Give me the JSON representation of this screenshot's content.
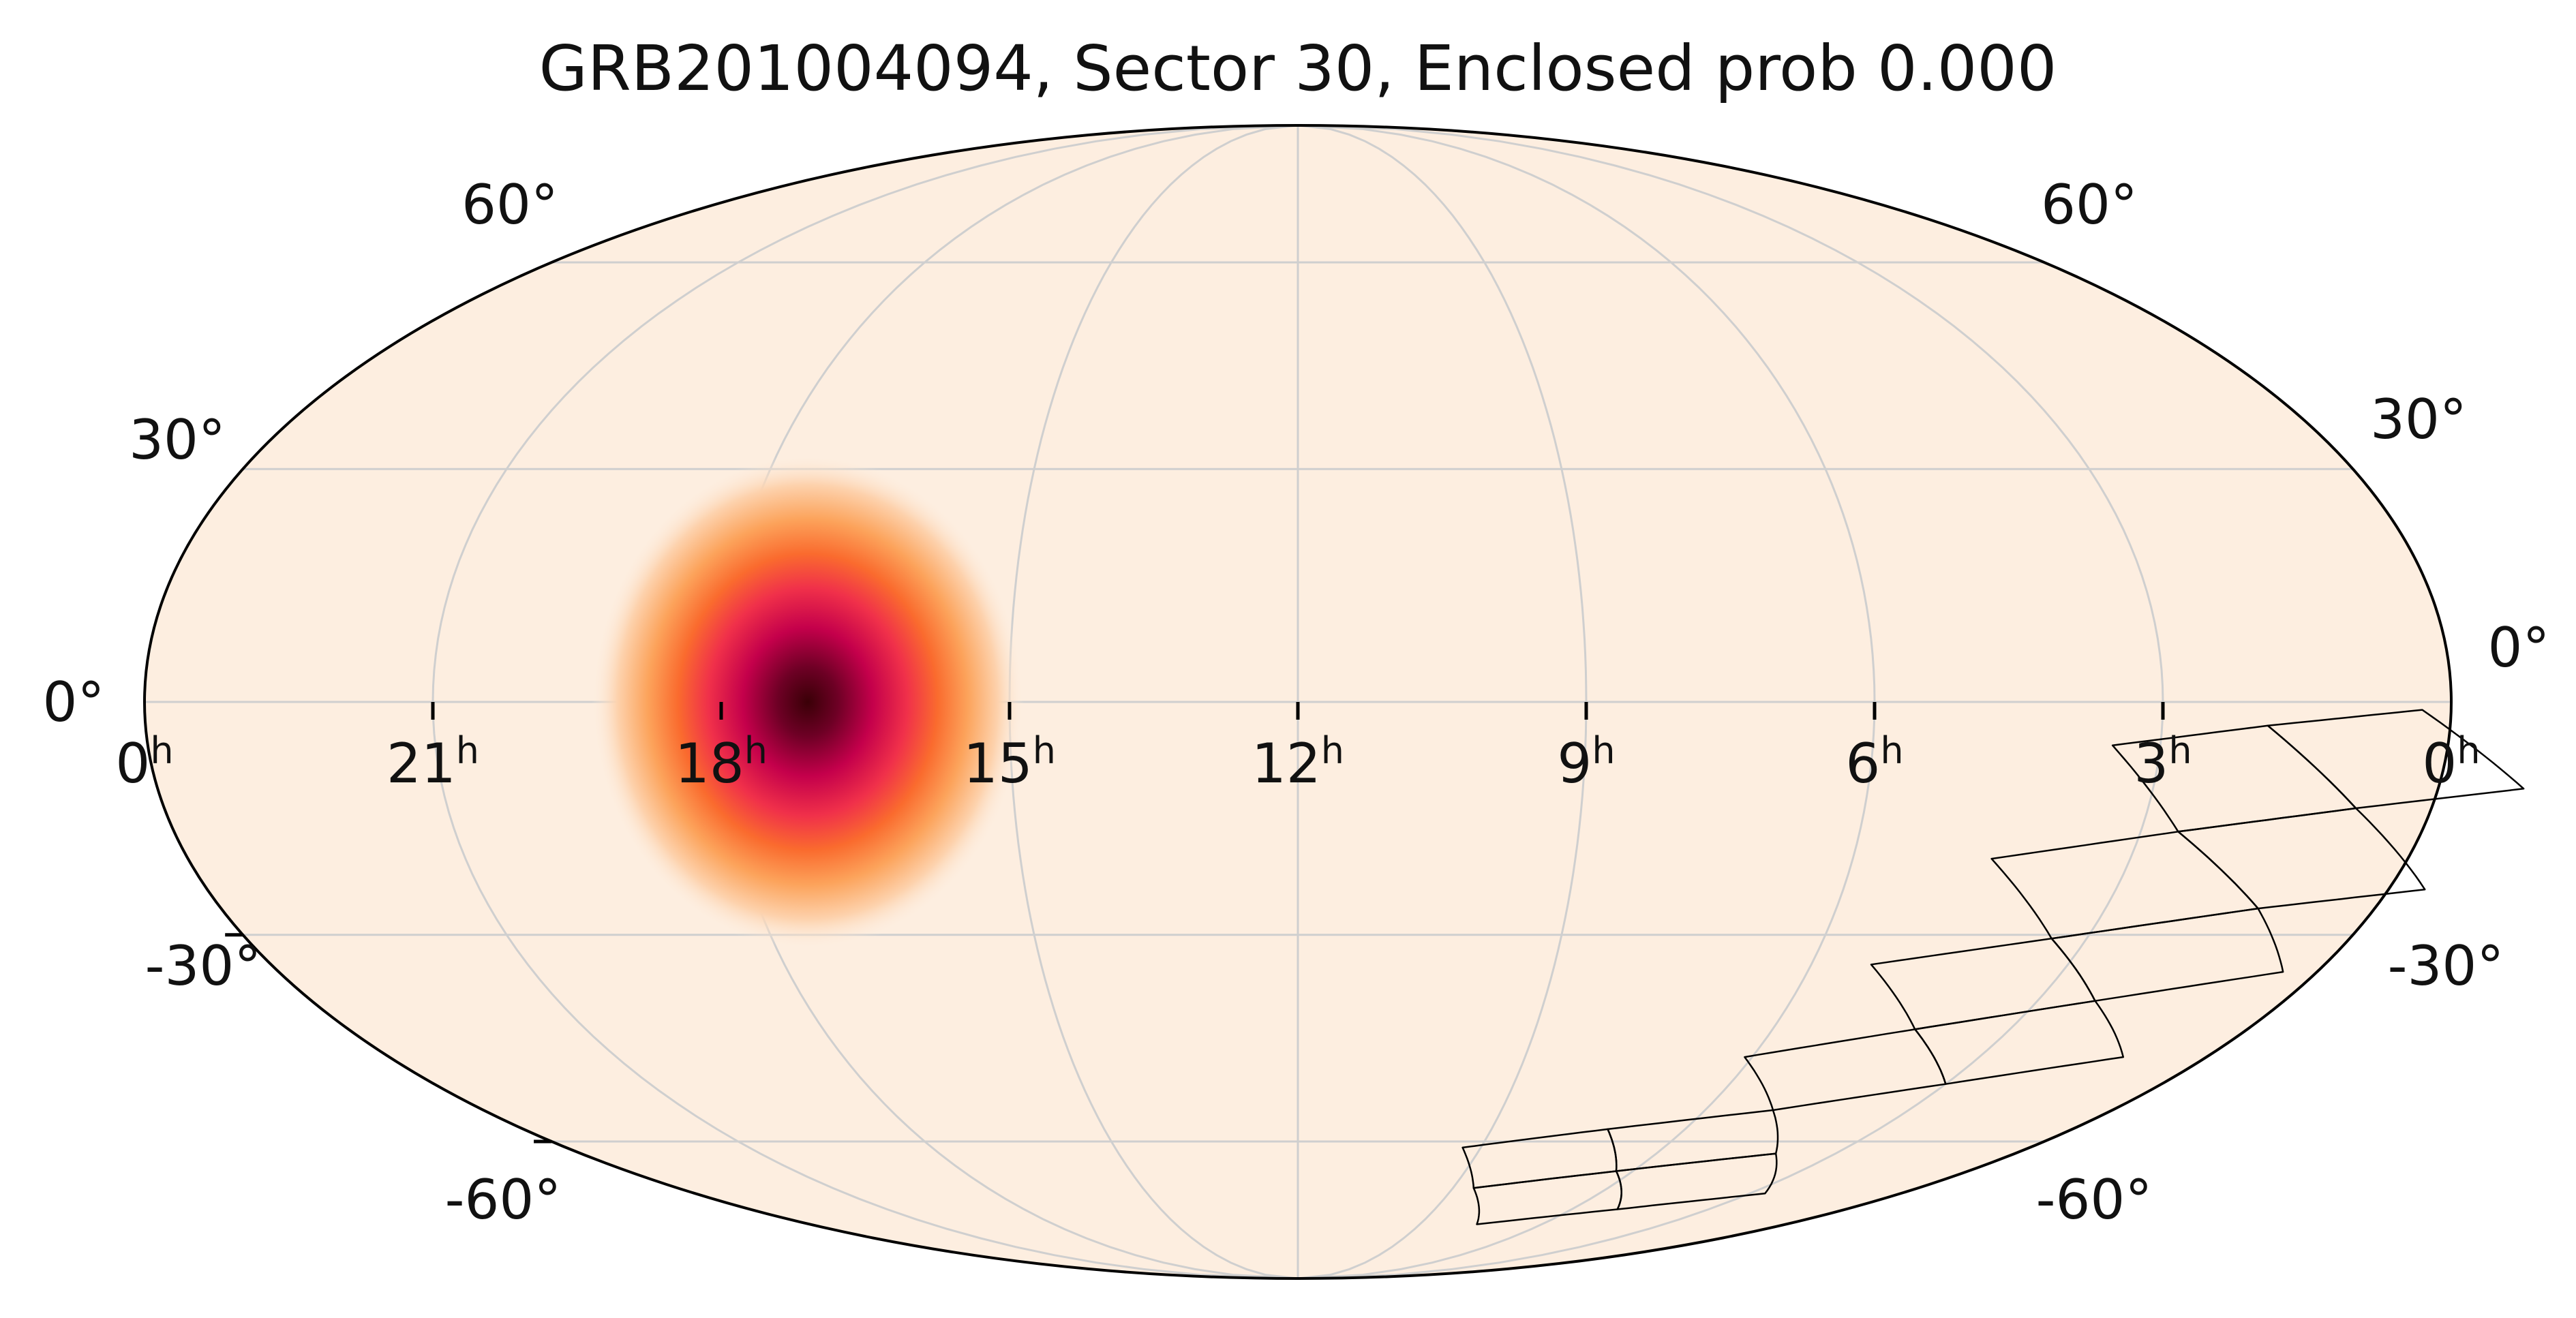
{
  "title": "GRB201004094, Sector 30, Enclosed prob 0.000",
  "projection": "mollweide",
  "colors": {
    "background": "#fdeee0",
    "grid": "#cfcfcf",
    "outline": "#000000",
    "footprint": "#000000",
    "colormap": [
      "#fdeee0",
      "#fdd0a8",
      "#fc9c56",
      "#f85a36",
      "#e0174a",
      "#a3004b",
      "#3a0007"
    ]
  },
  "ra_labels": [
    {
      "hours": 0,
      "text": "0",
      "unit": "h"
    },
    {
      "hours": 21,
      "text": "21",
      "unit": "h"
    },
    {
      "hours": 18,
      "text": "18",
      "unit": "h"
    },
    {
      "hours": 15,
      "text": "15",
      "unit": "h"
    },
    {
      "hours": 12,
      "text": "12",
      "unit": "h"
    },
    {
      "hours": 9,
      "text": "9",
      "unit": "h"
    },
    {
      "hours": 6,
      "text": "6",
      "unit": "h"
    },
    {
      "hours": 3,
      "text": "3",
      "unit": "h"
    },
    {
      "hours": 0,
      "text": "0",
      "unit": "h",
      "side": "right"
    }
  ],
  "dec_labels_left": [
    {
      "dec": 60,
      "text": "60°"
    },
    {
      "dec": 30,
      "text": "30°"
    },
    {
      "dec": 0,
      "text": "0°"
    },
    {
      "dec": -30,
      "text": "-30°"
    },
    {
      "dec": -60,
      "text": "-60°"
    }
  ],
  "dec_labels_right": [
    {
      "dec": 60,
      "text": "60°"
    },
    {
      "dec": 30,
      "text": "30°"
    },
    {
      "dec": 0,
      "text": "0°"
    },
    {
      "dec": -30,
      "text": "-30°"
    },
    {
      "dec": -60,
      "text": "-60°"
    }
  ],
  "probability_peak": {
    "ra_hours": 17.1,
    "dec_deg": 0,
    "sigma_ra_hours": 0.75,
    "sigma_dec_deg": 11
  },
  "sector_footprints": [
    {
      "name": "camera-1",
      "ccds": [
        [
          [
            0.3,
            -1
          ],
          [
            1.9,
            -3
          ],
          [
            0.8,
            -13.5
          ],
          [
            -0.9,
            -11
          ]
        ],
        [
          [
            1.9,
            -3
          ],
          [
            3.5,
            -5.5
          ],
          [
            2.6,
            -16.5
          ],
          [
            0.8,
            -13.5
          ]
        ],
        [
          [
            0.8,
            -13.5
          ],
          [
            2.6,
            -16.5
          ],
          [
            1.3,
            -26.5
          ],
          [
            -0.4,
            -24
          ]
        ],
        [
          [
            2.6,
            -16.5
          ],
          [
            4.5,
            -20
          ],
          [
            3.4,
            -30.5
          ],
          [
            1.3,
            -26.5
          ]
        ]
      ]
    },
    {
      "name": "camera-2",
      "ccds": [
        [
          [
            1.3,
            -26.5
          ],
          [
            3.4,
            -30.5
          ],
          [
            2.3,
            -39
          ],
          [
            0.4,
            -35
          ]
        ],
        [
          [
            3.4,
            -30.5
          ],
          [
            5.3,
            -34
          ],
          [
            4.2,
            -43
          ],
          [
            2.3,
            -39
          ]
        ],
        [
          [
            2.3,
            -39
          ],
          [
            4.2,
            -43
          ],
          [
            3.0,
            -51
          ],
          [
            1.1,
            -47
          ]
        ],
        [
          [
            4.2,
            -43
          ],
          [
            6.1,
            -47
          ],
          [
            5.0,
            -55
          ],
          [
            3.0,
            -51
          ]
        ]
      ]
    },
    {
      "name": "camera-3",
      "ccds": [
        [
          [
            5.0,
            -55
          ],
          [
            7.2,
            -58
          ],
          [
            6.3,
            -65
          ],
          [
            4.0,
            -62
          ]
        ],
        [
          [
            7.2,
            -58
          ],
          [
            9.3,
            -61
          ],
          [
            8.6,
            -68
          ],
          [
            6.3,
            -65
          ]
        ],
        [
          [
            4.0,
            -62
          ],
          [
            6.3,
            -65
          ],
          [
            5.0,
            -72
          ],
          [
            2.7,
            -69
          ]
        ],
        [
          [
            6.3,
            -65
          ],
          [
            8.6,
            -68
          ],
          [
            7.6,
            -75
          ],
          [
            5.0,
            -72
          ]
        ]
      ]
    }
  ]
}
